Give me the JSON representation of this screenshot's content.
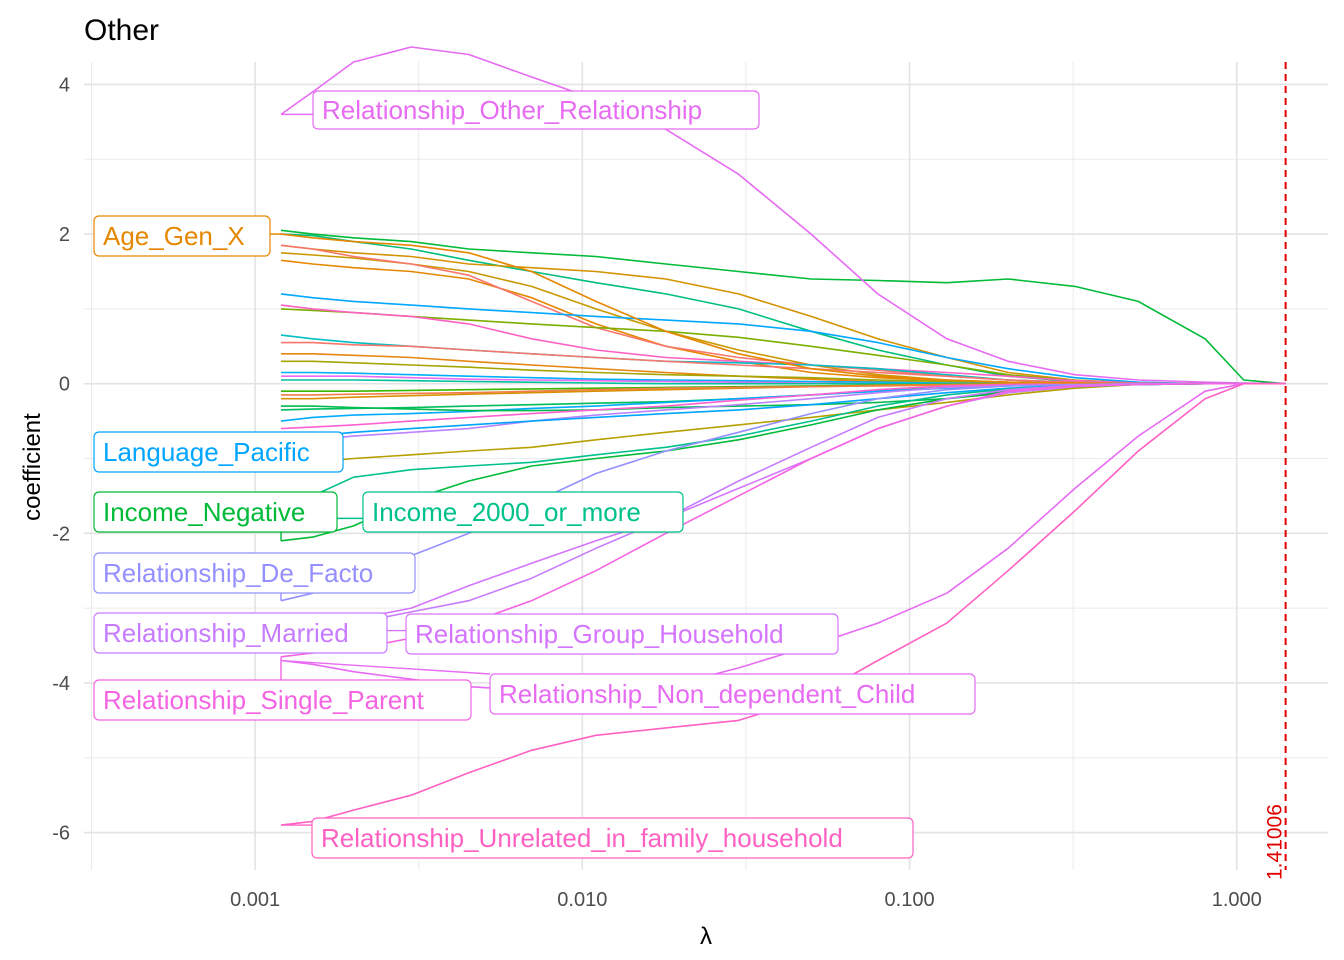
{
  "chart_data": {
    "type": "line",
    "title": "Other",
    "xlabel": "λ",
    "ylabel": "coefficient",
    "x_scale": "log10",
    "xlim": [
      0.0003,
      1.9
    ],
    "ylim": [
      -6.5,
      4.3
    ],
    "x_ticks": [
      0.001,
      0.01,
      0.1,
      1.0
    ],
    "x_tick_labels": [
      "0.001",
      "0.010",
      "0.100",
      "1.000"
    ],
    "y_ticks": [
      -6,
      -4,
      -2,
      0,
      2,
      4
    ],
    "y_tick_labels": [
      "-6",
      "-4",
      "-2",
      "0",
      "2",
      "4"
    ],
    "grid": true,
    "vline": {
      "x": 1.41006,
      "label": "1.41006",
      "color": "#e00000"
    },
    "lambda": [
      0.0012,
      0.0015,
      0.002,
      0.003,
      0.0045,
      0.007,
      0.011,
      0.018,
      0.03,
      0.05,
      0.08,
      0.13,
      0.2,
      0.32,
      0.5,
      0.8,
      1.05,
      1.41006
    ],
    "labeled_series": [
      {
        "name": "Relationship_Other_Relationship",
        "color": "#e76bf3",
        "values": [
          3.6,
          3.9,
          4.3,
          4.5,
          4.4,
          4.1,
          3.8,
          3.4,
          2.8,
          2.0,
          1.2,
          0.6,
          0.3,
          0.12,
          0.05,
          0.02,
          0.01,
          0
        ]
      },
      {
        "name": "Age_Gen_X",
        "color": "#e58700",
        "values": [
          2.0,
          1.95,
          1.9,
          1.85,
          1.75,
          1.5,
          1.1,
          0.7,
          0.4,
          0.2,
          0.1,
          0.05,
          0.02,
          0.01,
          0.0,
          0,
          0,
          0
        ]
      },
      {
        "name": "Language_Pacific",
        "color": "#00a5ff",
        "values": [
          -0.8,
          -0.7,
          -0.65,
          -0.6,
          -0.55,
          -0.5,
          -0.45,
          -0.4,
          -0.35,
          -0.28,
          -0.2,
          -0.12,
          -0.06,
          -0.02,
          -0.01,
          0,
          0,
          0
        ]
      },
      {
        "name": "Income_Negative",
        "color": "#00ba38",
        "values": [
          -2.1,
          -2.05,
          -1.9,
          -1.55,
          -1.3,
          -1.1,
          -1.0,
          -0.9,
          -0.75,
          -0.55,
          -0.35,
          -0.2,
          -0.1,
          -0.04,
          -0.01,
          0,
          0,
          0
        ]
      },
      {
        "name": "Income_2000_or_more",
        "color": "#00c08b",
        "values": [
          -1.8,
          -1.5,
          -1.25,
          -1.15,
          -1.1,
          -1.05,
          -0.95,
          -0.85,
          -0.7,
          -0.5,
          -0.3,
          -0.15,
          -0.07,
          -0.03,
          -0.01,
          0,
          0,
          0
        ]
      },
      {
        "name": "Relationship_De_Facto",
        "color": "#9590ff",
        "values": [
          -2.9,
          -2.8,
          -2.5,
          -2.3,
          -2.0,
          -1.6,
          -1.2,
          -0.9,
          -0.65,
          -0.4,
          -0.2,
          -0.08,
          -0.03,
          -0.01,
          0,
          0,
          0,
          0
        ]
      },
      {
        "name": "Relationship_Married",
        "color": "#c77cff",
        "values": [
          -3.4,
          -3.3,
          -3.2,
          -3.05,
          -2.9,
          -2.6,
          -2.2,
          -1.8,
          -1.3,
          -0.85,
          -0.45,
          -0.2,
          -0.08,
          -0.02,
          0,
          0,
          0,
          0
        ]
      },
      {
        "name": "Relationship_Group_Household",
        "color": "#d575fe",
        "values": [
          -3.3,
          -3.25,
          -3.15,
          -3.0,
          -2.7,
          -2.4,
          -2.1,
          -1.8,
          -1.4,
          -1.0,
          -0.6,
          -0.3,
          -0.12,
          -0.04,
          -0.01,
          0,
          0,
          0
        ]
      },
      {
        "name": "Relationship_Single_Parent",
        "color": "#f564e3",
        "values": [
          -3.65,
          -3.6,
          -3.55,
          -3.4,
          -3.2,
          -2.9,
          -2.5,
          -2.0,
          -1.5,
          -1.0,
          -0.6,
          -0.3,
          -0.1,
          -0.03,
          -0.01,
          0,
          0,
          0
        ]
      },
      {
        "name": "Relationship_Non_dependent_Child",
        "color": "#e76bf3",
        "values": [
          -3.7,
          -3.75,
          -3.85,
          -3.95,
          -4.05,
          -4.1,
          -4.1,
          -4.05,
          -3.8,
          -3.5,
          -3.2,
          -2.8,
          -2.2,
          -1.4,
          -0.7,
          -0.1,
          0,
          0
        ]
      },
      {
        "name": "Relationship_Unrelated_in_family_household",
        "color": "#ff61c3",
        "values": [
          -5.9,
          -5.85,
          -5.7,
          -5.5,
          -5.2,
          -4.9,
          -4.7,
          -4.6,
          -4.5,
          -4.2,
          -3.7,
          -3.2,
          -2.5,
          -1.7,
          -0.9,
          -0.2,
          0,
          0
        ]
      }
    ],
    "other_series": [
      {
        "color": "#00ba38",
        "values": [
          2.05,
          2.0,
          1.95,
          1.9,
          1.8,
          1.75,
          1.7,
          1.6,
          1.5,
          1.4,
          1.38,
          1.35,
          1.4,
          1.3,
          1.1,
          0.6,
          0.05,
          0
        ]
      },
      {
        "color": "#00bf7d",
        "values": [
          2.0,
          1.98,
          1.9,
          1.8,
          1.65,
          1.5,
          1.35,
          1.2,
          1.0,
          0.7,
          0.45,
          0.25,
          0.1,
          0.03,
          0.01,
          0,
          0,
          0
        ]
      },
      {
        "color": "#d39200",
        "values": [
          1.85,
          1.8,
          1.75,
          1.7,
          1.6,
          1.55,
          1.5,
          1.4,
          1.2,
          0.9,
          0.6,
          0.35,
          0.15,
          0.05,
          0.01,
          0,
          0,
          0
        ]
      },
      {
        "color": "#c99800",
        "values": [
          1.75,
          1.72,
          1.68,
          1.6,
          1.5,
          1.3,
          1.0,
          0.7,
          0.45,
          0.25,
          0.12,
          0.05,
          0.02,
          0.01,
          0,
          0,
          0,
          0
        ]
      },
      {
        "color": "#e58700",
        "values": [
          1.65,
          1.6,
          1.55,
          1.5,
          1.4,
          1.15,
          0.8,
          0.5,
          0.3,
          0.15,
          0.08,
          0.04,
          0.02,
          0.01,
          0,
          0,
          0,
          0
        ]
      },
      {
        "color": "#f8766d",
        "values": [
          1.85,
          1.8,
          1.7,
          1.6,
          1.45,
          1.1,
          0.75,
          0.5,
          0.35,
          0.25,
          0.18,
          0.1,
          0.05,
          0.02,
          0.01,
          0,
          0,
          0
        ]
      },
      {
        "color": "#00a9ff",
        "values": [
          1.2,
          1.15,
          1.1,
          1.05,
          1.0,
          0.95,
          0.9,
          0.85,
          0.8,
          0.7,
          0.55,
          0.35,
          0.2,
          0.08,
          0.02,
          0,
          0,
          0
        ]
      },
      {
        "color": "#7cae00",
        "values": [
          1.0,
          0.98,
          0.95,
          0.9,
          0.85,
          0.8,
          0.75,
          0.7,
          0.62,
          0.5,
          0.38,
          0.25,
          0.12,
          0.04,
          0.01,
          0,
          0,
          0
        ]
      },
      {
        "color": "#ff61c3",
        "values": [
          1.05,
          1.0,
          0.95,
          0.9,
          0.8,
          0.6,
          0.45,
          0.35,
          0.3,
          0.25,
          0.2,
          0.15,
          0.1,
          0.04,
          0.01,
          0,
          0,
          0
        ]
      },
      {
        "color": "#00bfc4",
        "values": [
          0.65,
          0.6,
          0.55,
          0.5,
          0.45,
          0.4,
          0.35,
          0.3,
          0.28,
          0.25,
          0.2,
          0.12,
          0.05,
          0.02,
          0,
          0,
          0,
          0
        ]
      },
      {
        "color": "#f8766d",
        "values": [
          0.55,
          0.55,
          0.52,
          0.5,
          0.45,
          0.4,
          0.35,
          0.3,
          0.25,
          0.2,
          0.15,
          0.1,
          0.05,
          0.02,
          0,
          0,
          0,
          0
        ]
      },
      {
        "color": "#e68613",
        "values": [
          0.4,
          0.4,
          0.38,
          0.35,
          0.3,
          0.25,
          0.2,
          0.15,
          0.1,
          0.06,
          0.03,
          0.01,
          0,
          0,
          0,
          0,
          0,
          0
        ]
      },
      {
        "color": "#a3a500",
        "values": [
          0.3,
          0.3,
          0.28,
          0.25,
          0.22,
          0.18,
          0.15,
          0.12,
          0.1,
          0.08,
          0.05,
          0.03,
          0.01,
          0,
          0,
          0,
          0,
          0
        ]
      },
      {
        "color": "#00b0f6",
        "values": [
          0.15,
          0.15,
          0.14,
          0.12,
          0.1,
          0.08,
          0.06,
          0.05,
          0.04,
          0.03,
          0.02,
          0.01,
          0,
          0,
          0,
          0,
          0,
          0
        ]
      },
      {
        "color": "#e76bf3",
        "values": [
          0.1,
          0.1,
          0.1,
          0.08,
          0.06,
          0.05,
          0.04,
          0.03,
          0.02,
          0.01,
          0,
          0,
          0,
          0,
          0,
          0,
          0,
          0
        ]
      },
      {
        "color": "#00c19a",
        "values": [
          0.05,
          0.05,
          0.05,
          0.04,
          0.03,
          0.02,
          0.01,
          0,
          0,
          0,
          0,
          0,
          0,
          0,
          0,
          0,
          0,
          0
        ]
      },
      {
        "color": "#39b600",
        "values": [
          -0.1,
          -0.1,
          -0.1,
          -0.09,
          -0.08,
          -0.07,
          -0.06,
          -0.05,
          -0.04,
          -0.03,
          -0.02,
          -0.01,
          0,
          0,
          0,
          0,
          0,
          0
        ]
      },
      {
        "color": "#d89000",
        "values": [
          -0.2,
          -0.2,
          -0.18,
          -0.16,
          -0.14,
          -0.12,
          -0.1,
          -0.08,
          -0.06,
          -0.04,
          -0.02,
          -0.01,
          0,
          0,
          0,
          0,
          0,
          0
        ]
      },
      {
        "color": "#00bd5c",
        "values": [
          -0.35,
          -0.34,
          -0.33,
          -0.32,
          -0.3,
          -0.28,
          -0.26,
          -0.24,
          -0.2,
          -0.15,
          -0.1,
          -0.05,
          -0.02,
          0,
          0,
          0,
          0,
          0
        ]
      },
      {
        "color": "#00abfd",
        "values": [
          -0.5,
          -0.45,
          -0.42,
          -0.4,
          -0.37,
          -0.33,
          -0.3,
          -0.25,
          -0.2,
          -0.15,
          -0.1,
          -0.06,
          -0.03,
          -0.01,
          0,
          0,
          0,
          0
        ]
      },
      {
        "color": "#b79f00",
        "values": [
          -1.1,
          -1.05,
          -1.0,
          -0.95,
          -0.9,
          -0.85,
          -0.75,
          -0.65,
          -0.55,
          -0.45,
          -0.35,
          -0.25,
          -0.15,
          -0.06,
          -0.01,
          0,
          0,
          0
        ]
      },
      {
        "color": "#00bb4e",
        "values": [
          -0.3,
          -0.3,
          -0.32,
          -0.34,
          -0.36,
          -0.36,
          -0.35,
          -0.32,
          -0.3,
          -0.28,
          -0.25,
          -0.2,
          -0.12,
          -0.04,
          -0.01,
          0,
          0,
          0
        ]
      },
      {
        "color": "#ef7f49",
        "values": [
          -0.15,
          -0.15,
          -0.14,
          -0.13,
          -0.12,
          -0.1,
          -0.08,
          -0.06,
          -0.05,
          -0.04,
          -0.03,
          -0.02,
          -0.01,
          0,
          0,
          0,
          0,
          0
        ]
      },
      {
        "color": "#b983ff",
        "values": [
          -0.8,
          -0.75,
          -0.7,
          -0.65,
          -0.6,
          -0.5,
          -0.42,
          -0.35,
          -0.28,
          -0.2,
          -0.12,
          -0.05,
          -0.02,
          0,
          0,
          0,
          0,
          0
        ]
      },
      {
        "color": "#fd61d1",
        "values": [
          -0.6,
          -0.58,
          -0.55,
          -0.5,
          -0.45,
          -0.4,
          -0.35,
          -0.3,
          -0.22,
          -0.15,
          -0.08,
          -0.03,
          -0.01,
          0,
          0,
          0,
          0,
          0
        ]
      }
    ]
  }
}
